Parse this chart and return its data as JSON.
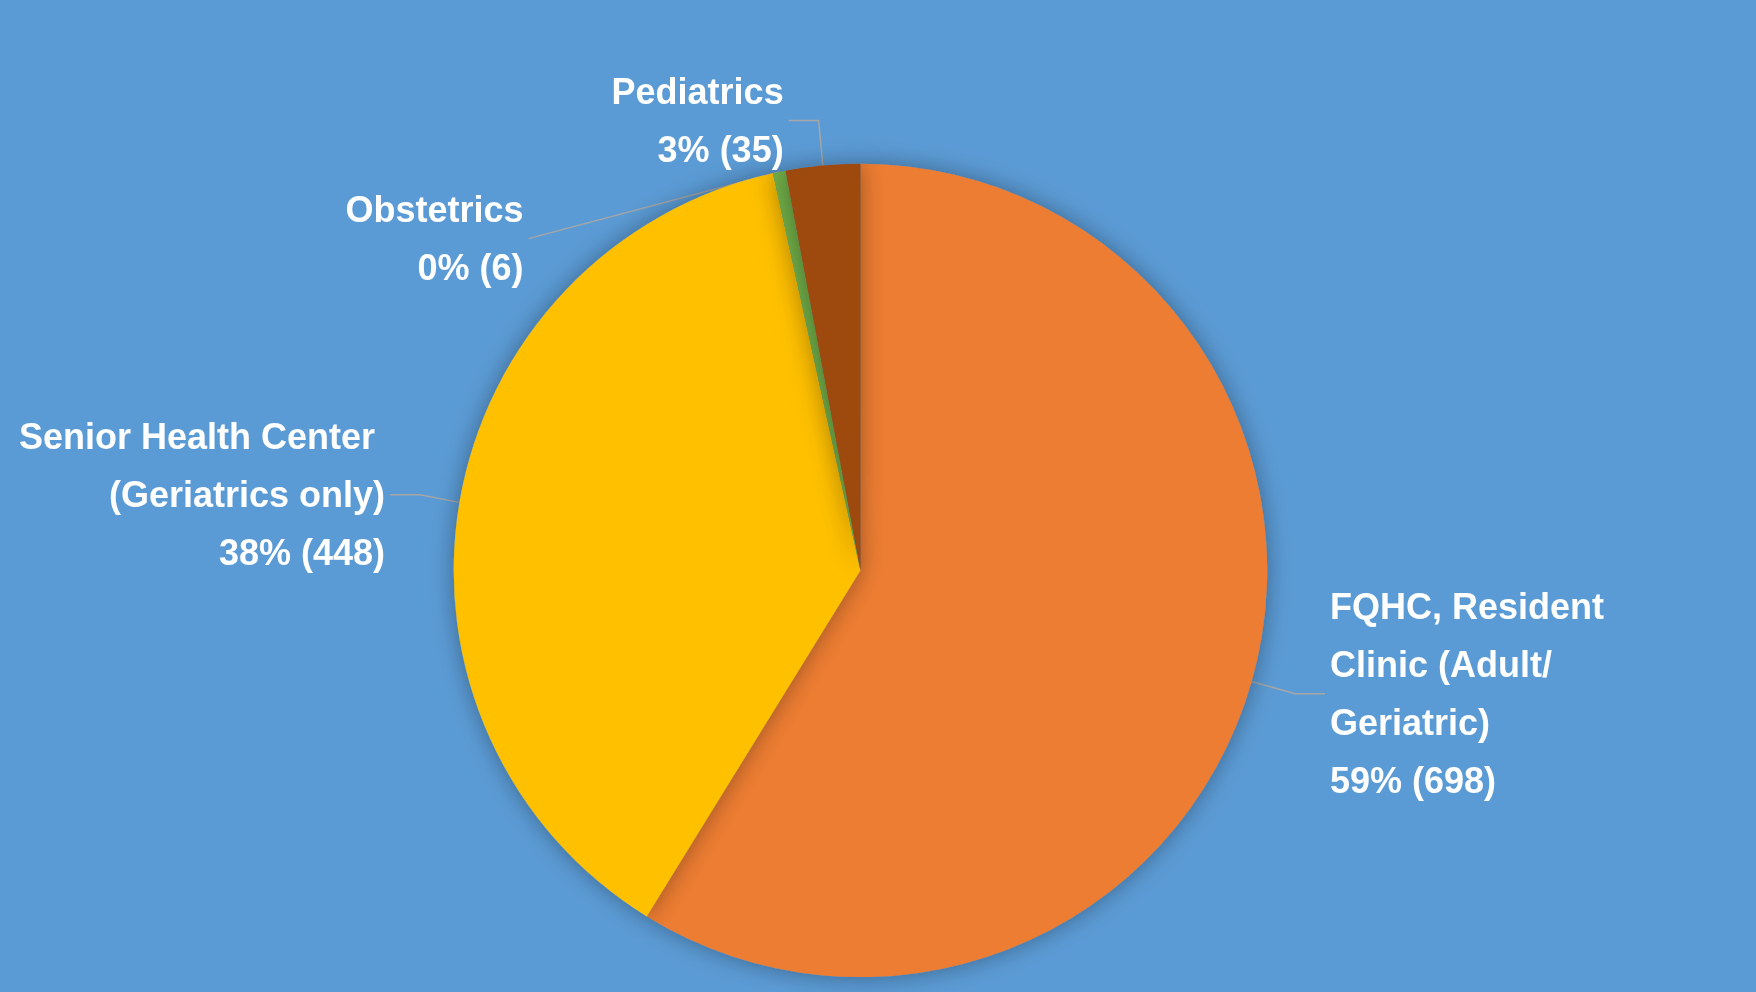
{
  "chart_data": {
    "type": "pie",
    "categories": [
      "FQHC, Resident Clinic (Adult/Geriatric)",
      "Senior Health Center (Geriatrics only)",
      "Obstetrics",
      "Pediatrics"
    ],
    "values": [
      698,
      448,
      6,
      35
    ],
    "value_labels": [
      "59% (698)",
      "38% (448)",
      "0% (6)",
      "3% (35)"
    ],
    "colors": [
      "#ed7d31",
      "#ffc000",
      "#70ad47",
      "#9e480e"
    ],
    "legend": false
  }
}
